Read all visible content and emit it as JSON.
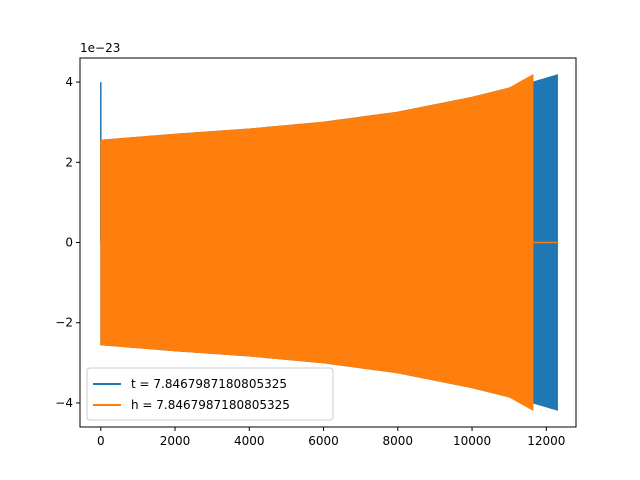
{
  "chart_data": {
    "type": "line",
    "title": "",
    "xlabel": "",
    "ylabel": "",
    "y_offset_label": "1e−23",
    "xlim": [
      -560,
      12800
    ],
    "ylim": [
      -4.6,
      4.6
    ],
    "x_ticks": [
      {
        "value": 0,
        "label": "0"
      },
      {
        "value": 2000,
        "label": "2000"
      },
      {
        "value": 4000,
        "label": "4000"
      },
      {
        "value": 6000,
        "label": "6000"
      },
      {
        "value": 8000,
        "label": "8000"
      },
      {
        "value": 10000,
        "label": "10000"
      },
      {
        "value": 12000,
        "label": "12000"
      }
    ],
    "y_ticks": [
      {
        "value": -4,
        "label": "−4"
      },
      {
        "value": -2,
        "label": "−2"
      },
      {
        "value": 0,
        "label": "0"
      },
      {
        "value": 2,
        "label": "2"
      },
      {
        "value": 4,
        "label": "4"
      }
    ],
    "grid": false,
    "legend": "lower-left",
    "series": [
      {
        "name": "t = 7.8467987180805325",
        "color": "#1f77b4",
        "x_range": [
          0,
          12300
        ],
        "spike": {
          "x": 0,
          "y": 4.0
        },
        "envelope": [
          {
            "x": 0,
            "amp": 2.55
          },
          {
            "x": 2000,
            "amp": 2.7
          },
          {
            "x": 4000,
            "amp": 2.83
          },
          {
            "x": 6000,
            "amp": 3.0
          },
          {
            "x": 8000,
            "amp": 3.25
          },
          {
            "x": 10000,
            "amp": 3.62
          },
          {
            "x": 11000,
            "amp": 3.85
          },
          {
            "x": 11640,
            "amp": 4.0
          },
          {
            "x": 12300,
            "amp": 4.18
          }
        ]
      },
      {
        "name": "h = 7.8467987180805325",
        "color": "#ff7f0e",
        "x_range": [
          0,
          11640
        ],
        "tail": {
          "x_start": 11640,
          "x_end": 12300,
          "y": 0
        },
        "envelope": [
          {
            "x": 0,
            "amp": 2.55
          },
          {
            "x": 2000,
            "amp": 2.7
          },
          {
            "x": 4000,
            "amp": 2.83
          },
          {
            "x": 6000,
            "amp": 3.0
          },
          {
            "x": 8000,
            "amp": 3.25
          },
          {
            "x": 10000,
            "amp": 3.62
          },
          {
            "x": 11000,
            "amp": 3.85
          },
          {
            "x": 11640,
            "amp": 4.18
          }
        ]
      }
    ]
  }
}
